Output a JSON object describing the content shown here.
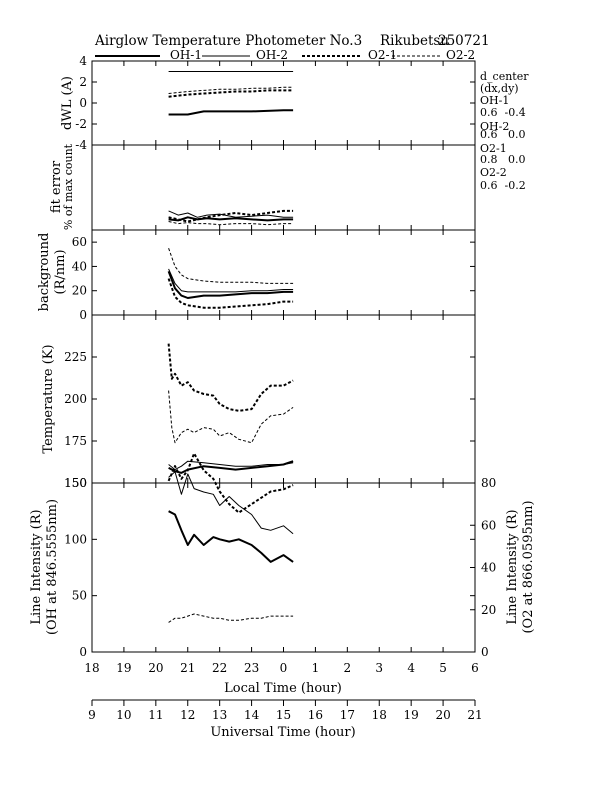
{
  "title": "Airglow Temperature Photometer No.3",
  "site": "Rikubetsu",
  "date": "250721",
  "legend": [
    {
      "label": "OH-1",
      "style": "solid-thick"
    },
    {
      "label": "OH-2",
      "style": "solid-thin"
    },
    {
      "label": "O2-1",
      "style": "dash-thick"
    },
    {
      "label": "O2-2",
      "style": "dash-thin"
    }
  ],
  "side_note": {
    "header": [
      "d_center",
      "(dx,dy)"
    ],
    "entries": [
      {
        "name": "OH-1",
        "value": "0.6  -0.4"
      },
      {
        "name": "OH-2",
        "value": "0.6   0.0"
      },
      {
        "name": "O2-1",
        "value": "0.8   0.0"
      },
      {
        "name": "O2-2",
        "value": "0.6  -0.2"
      }
    ]
  },
  "axes": {
    "local_label": "Local Time (hour)",
    "local_ticks": [
      "18",
      "19",
      "20",
      "21",
      "22",
      "23",
      "0",
      "1",
      "2",
      "3",
      "4",
      "5",
      "6"
    ],
    "ut_label": "Universal Time (hour)",
    "ut_ticks": [
      "9",
      "10",
      "11",
      "12",
      "13",
      "14",
      "15",
      "16",
      "17",
      "18",
      "19",
      "20",
      "21"
    ]
  },
  "chart_data": [
    {
      "type": "line",
      "id": "dwl",
      "ylabel": "dWL (A)",
      "ylim": [
        -4,
        4
      ],
      "yticks": [
        "-4",
        "-2",
        "0",
        "2",
        "4"
      ],
      "xlim": [
        18,
        30
      ],
      "series": [
        {
          "name": "OH-1",
          "x": [
            20.4,
            21.0,
            21.5,
            22,
            23,
            24,
            24.3
          ],
          "y": [
            -1.1,
            -1.1,
            -0.8,
            -0.8,
            -0.8,
            -0.7,
            -0.7
          ]
        },
        {
          "name": "OH-2",
          "x": [
            20.4,
            21.5,
            22,
            23,
            24,
            24.3
          ],
          "y": [
            3.0,
            3.0,
            3.0,
            3.0,
            3.0,
            3.0
          ]
        },
        {
          "name": "O2-1",
          "x": [
            20.4,
            21,
            21.5,
            22,
            22.5,
            23,
            23.5,
            24,
            24.3
          ],
          "y": [
            0.6,
            0.8,
            0.9,
            1.0,
            1.1,
            1.1,
            1.2,
            1.2,
            1.2
          ]
        },
        {
          "name": "O2-2",
          "x": [
            20.4,
            21,
            21.5,
            22,
            22.5,
            23,
            23.5,
            24,
            24.3
          ],
          "y": [
            0.9,
            1.1,
            1.2,
            1.3,
            1.3,
            1.4,
            1.4,
            1.5,
            1.5
          ]
        }
      ]
    },
    {
      "type": "line",
      "id": "fit",
      "ylabel": [
        "fit error",
        "% of max count"
      ],
      "ylim": [
        0,
        4
      ],
      "xlim": [
        18,
        30
      ],
      "series": [
        {
          "name": "OH-1",
          "x": [
            20.4,
            20.7,
            21,
            21.3,
            21.6,
            22,
            22.5,
            23,
            23.5,
            24,
            24.3
          ],
          "y": [
            0.5,
            0.45,
            0.6,
            0.5,
            0.55,
            0.5,
            0.55,
            0.5,
            0.45,
            0.5,
            0.5
          ]
        },
        {
          "name": "OH-2",
          "x": [
            20.4,
            20.7,
            21,
            21.3,
            21.6,
            22,
            22.5,
            23,
            23.5,
            24,
            24.3
          ],
          "y": [
            0.9,
            0.7,
            0.8,
            0.6,
            0.7,
            0.75,
            0.6,
            0.65,
            0.7,
            0.6,
            0.6
          ]
        },
        {
          "name": "O2-1",
          "x": [
            20.4,
            20.7,
            21,
            21.3,
            21.6,
            22,
            22.5,
            23,
            23.5,
            24,
            24.3
          ],
          "y": [
            0.6,
            0.5,
            0.4,
            0.5,
            0.6,
            0.7,
            0.8,
            0.7,
            0.8,
            0.9,
            0.9
          ]
        },
        {
          "name": "O2-2",
          "x": [
            20.4,
            20.7,
            21,
            21.3,
            21.6,
            22,
            22.5,
            23,
            23.5,
            24,
            24.3
          ],
          "y": [
            0.4,
            0.3,
            0.35,
            0.3,
            0.3,
            0.25,
            0.3,
            0.3,
            0.25,
            0.3,
            0.3
          ]
        }
      ]
    },
    {
      "type": "line",
      "id": "bg",
      "ylabel": [
        "background",
        "(R/nm)"
      ],
      "ylim": [
        0,
        70
      ],
      "yticks": [
        "0",
        "20",
        "40",
        "60"
      ],
      "xlim": [
        18,
        30
      ],
      "series": [
        {
          "name": "OH-1",
          "x": [
            20.4,
            20.6,
            20.8,
            21,
            21.5,
            22,
            22.5,
            23,
            23.5,
            24,
            24.3
          ],
          "y": [
            36,
            22,
            16,
            14,
            16,
            16,
            17,
            18,
            18,
            19,
            19
          ]
        },
        {
          "name": "OH-2",
          "x": [
            20.4,
            20.6,
            20.8,
            21,
            21.5,
            22,
            22.5,
            23,
            23.5,
            24,
            24.3
          ],
          "y": [
            38,
            26,
            20,
            19,
            19,
            19,
            19,
            20,
            20,
            21,
            21
          ]
        },
        {
          "name": "O2-1",
          "x": [
            20.4,
            20.6,
            20.8,
            21,
            21.5,
            22,
            22.5,
            23,
            23.5,
            24,
            24.3
          ],
          "y": [
            30,
            15,
            10,
            8,
            6,
            6,
            7,
            8,
            9,
            11,
            11
          ]
        },
        {
          "name": "O2-2",
          "x": [
            20.4,
            20.6,
            20.8,
            21,
            21.5,
            22,
            22.5,
            23,
            23.5,
            24,
            24.3
          ],
          "y": [
            55,
            40,
            33,
            30,
            28,
            27,
            27,
            27,
            26,
            26,
            26
          ]
        }
      ]
    },
    {
      "type": "line",
      "id": "temp",
      "ylabel": "Temperature (K)",
      "ylim": [
        150,
        250
      ],
      "yticks": [
        "150",
        "175",
        "200",
        "225"
      ],
      "xlim": [
        18,
        30
      ],
      "series": [
        {
          "name": "OH-1",
          "x": [
            20.4,
            20.6,
            20.8,
            21,
            21.5,
            22,
            22.5,
            23,
            23.5,
            24,
            24.3
          ],
          "y": [
            159,
            157,
            156,
            158,
            160,
            159,
            158,
            159,
            160,
            161,
            163
          ]
        },
        {
          "name": "OH-2",
          "x": [
            20.4,
            20.6,
            20.8,
            21,
            21.5,
            22,
            22.5,
            23,
            23.5,
            24,
            24.3
          ],
          "y": [
            161,
            158,
            160,
            163,
            162,
            161,
            160,
            160,
            161,
            161,
            162
          ]
        },
        {
          "name": "O2-1",
          "x": [
            20.4,
            20.5,
            20.6,
            20.8,
            21,
            21.2,
            21.5,
            21.8,
            22,
            22.3,
            22.6,
            23,
            23.3,
            23.6,
            24,
            24.3
          ],
          "y": [
            233,
            212,
            215,
            208,
            210,
            205,
            203,
            202,
            197,
            194,
            193,
            194,
            203,
            208,
            208,
            211
          ]
        },
        {
          "name": "O2-2",
          "x": [
            20.4,
            20.5,
            20.6,
            20.8,
            21,
            21.2,
            21.5,
            21.8,
            22,
            22.3,
            22.6,
            23,
            23.3,
            23.6,
            24,
            24.3
          ],
          "y": [
            205,
            183,
            174,
            180,
            182,
            180,
            183,
            182,
            178,
            180,
            176,
            174,
            185,
            190,
            191,
            195
          ]
        }
      ]
    },
    {
      "type": "line",
      "id": "intensity",
      "ylabel": [
        "Line Intensity (R)",
        "(OH at 846.5555nm)"
      ],
      "ylabel_right": [
        "Line Intensity (R)",
        "(O2 at 866.0595nm)"
      ],
      "ylim": [
        0,
        150
      ],
      "yticks": [
        "0",
        "50",
        "100",
        "150"
      ],
      "ylim_right": [
        0,
        80
      ],
      "yticks_right": [
        "0",
        "20",
        "40",
        "60",
        "80"
      ],
      "xlim": [
        18,
        30
      ],
      "series": [
        {
          "name": "OH-1",
          "axis": "left",
          "x": [
            20.4,
            20.6,
            20.8,
            21,
            21.2,
            21.5,
            21.8,
            22,
            22.3,
            22.6,
            23,
            23.3,
            23.6,
            24,
            24.3
          ],
          "y": [
            125,
            122,
            108,
            95,
            104,
            95,
            102,
            100,
            98,
            100,
            95,
            88,
            80,
            86,
            80
          ]
        },
        {
          "name": "OH-2",
          "axis": "left",
          "x": [
            20.4,
            20.6,
            20.8,
            21,
            21.2,
            21.5,
            21.8,
            22,
            22.3,
            22.6,
            23,
            23.3,
            23.6,
            24,
            24.3
          ],
          "y": [
            155,
            160,
            140,
            158,
            145,
            142,
            140,
            130,
            138,
            130,
            122,
            110,
            108,
            112,
            105
          ]
        },
        {
          "name": "O2-1",
          "axis": "right",
          "x": [
            20.4,
            20.6,
            20.8,
            21,
            21.2,
            21.5,
            21.8,
            22,
            22.3,
            22.6,
            23,
            23.3,
            23.6,
            24,
            24.3
          ],
          "y": [
            81,
            88,
            82,
            86,
            94,
            86,
            82,
            76,
            70,
            66,
            70,
            73,
            76,
            77,
            79
          ]
        },
        {
          "name": "O2-2",
          "axis": "right",
          "x": [
            20.4,
            20.6,
            20.8,
            21,
            21.2,
            21.5,
            21.8,
            22,
            22.3,
            22.6,
            23,
            23.3,
            23.6,
            24,
            24.3
          ],
          "y": [
            14,
            16,
            16,
            17,
            18,
            17,
            16,
            16,
            15,
            15,
            16,
            16,
            17,
            17,
            17
          ]
        }
      ]
    }
  ]
}
